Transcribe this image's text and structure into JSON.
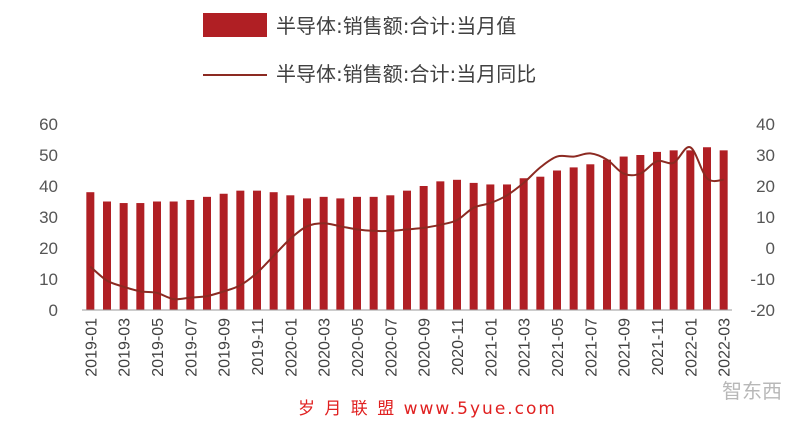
{
  "chart_data": {
    "type": "bar+line",
    "legend": [
      {
        "name": "半导体:销售额:合计:当月值",
        "kind": "bar"
      },
      {
        "name": "半导体:销售额:合计:当月同比",
        "kind": "line"
      }
    ],
    "legend_position": "top-center",
    "grid": false,
    "x": [
      "2019-01",
      "2019-02",
      "2019-03",
      "2019-04",
      "2019-05",
      "2019-06",
      "2019-07",
      "2019-08",
      "2019-09",
      "2019-10",
      "2019-11",
      "2019-12",
      "2020-01",
      "2020-02",
      "2020-03",
      "2020-04",
      "2020-05",
      "2020-06",
      "2020-07",
      "2020-08",
      "2020-09",
      "2020-10",
      "2020-11",
      "2020-12",
      "2021-01",
      "2021-02",
      "2021-03",
      "2021-04",
      "2021-05",
      "2021-06",
      "2021-07",
      "2021-08",
      "2021-09",
      "2021-10",
      "2021-11",
      "2021-12",
      "2022-01",
      "2022-02",
      "2022-03"
    ],
    "x_tick_labels": [
      "2019-01",
      "2019-03",
      "2019-05",
      "2019-07",
      "2019-09",
      "2019-11",
      "2020-01",
      "2020-03",
      "2020-05",
      "2020-07",
      "2020-09",
      "2020-11",
      "2021-01",
      "2021-03",
      "2021-05",
      "2021-07",
      "2021-09",
      "2021-11",
      "2022-01",
      "2022-03"
    ],
    "series": [
      {
        "name": "半导体:销售额:合计:当月值",
        "type": "bar",
        "axis": "left",
        "values": [
          38,
          35,
          34.5,
          34.5,
          35,
          35,
          35.5,
          36.5,
          37.5,
          38.5,
          38.5,
          38,
          37,
          36,
          36.5,
          36,
          36.5,
          36.5,
          37,
          38.5,
          40,
          41.5,
          42,
          41,
          40.5,
          40.5,
          42.5,
          43,
          45,
          46,
          47,
          48.5,
          49.5,
          50,
          51,
          51.5,
          51.5,
          52.5,
          51.5
        ]
      },
      {
        "name": "半导体:销售额:合计:当月同比",
        "type": "line",
        "axis": "right",
        "values": [
          -6,
          -10.5,
          -12.5,
          -14,
          -14.5,
          -16.5,
          -16,
          -15.5,
          -14,
          -12,
          -8,
          -2.5,
          3,
          7,
          8,
          7,
          6,
          5.5,
          5.5,
          6,
          6.5,
          7.5,
          9,
          13,
          14.5,
          17,
          21,
          26,
          29.5,
          29.5,
          30.5,
          28.5,
          24,
          24,
          28,
          27.5,
          32.5,
          22.5,
          22
        ]
      }
    ],
    "y_left": {
      "ylim": [
        0,
        60
      ],
      "ticks": [
        0,
        10,
        20,
        30,
        40,
        50,
        60
      ]
    },
    "y_right": {
      "ylim": [
        -20,
        40
      ],
      "ticks": [
        -20,
        -10,
        0,
        10,
        20,
        30,
        40
      ]
    },
    "colors": {
      "bar": "#b01f24",
      "line": "#8c2a22",
      "axis": "#9a9a9a"
    }
  },
  "watermark": {
    "text": "岁 月 联 盟  www.5yue.com",
    "brand": "智东西"
  }
}
